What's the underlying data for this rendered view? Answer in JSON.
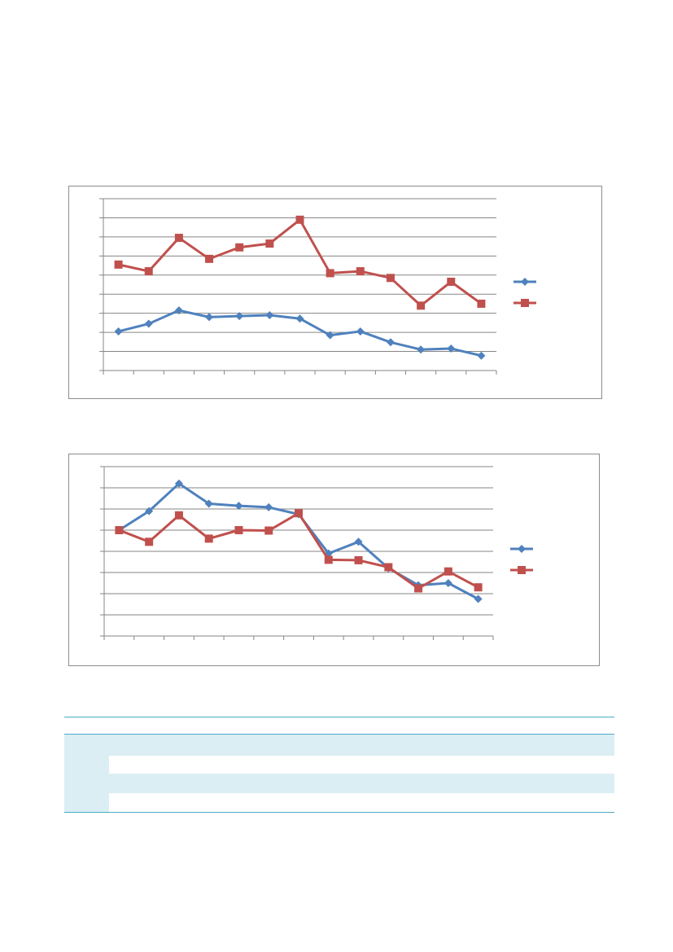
{
  "colors": {
    "series_a": "#4f81bd",
    "series_b": "#c0504d",
    "grid": "#868686",
    "table_accent": "#4bacc6",
    "table_band": "#dbeef4"
  },
  "chart_data": [
    {
      "type": "line",
      "x": [
        1,
        2,
        3,
        4,
        5,
        6,
        7,
        8,
        9,
        10,
        11,
        12,
        13
      ],
      "ylim": [
        0,
        9
      ],
      "grid": true,
      "legend": "right",
      "series": [
        {
          "color": "#4f81bd",
          "marker": "diamond",
          "values": [
            2.05,
            2.45,
            3.15,
            2.8,
            2.85,
            2.9,
            2.72,
            1.85,
            2.05,
            1.48,
            1.1,
            1.15,
            0.78
          ]
        },
        {
          "color": "#c0504d",
          "marker": "square",
          "values": [
            5.55,
            5.2,
            6.95,
            5.85,
            6.45,
            6.65,
            7.9,
            5.1,
            5.2,
            4.85,
            3.4,
            4.65,
            3.5
          ]
        }
      ]
    },
    {
      "type": "line",
      "x": [
        1,
        2,
        3,
        4,
        5,
        6,
        7,
        8,
        9,
        10,
        11,
        12,
        13
      ],
      "ylim": [
        0,
        8
      ],
      "grid": true,
      "legend": "right",
      "series": [
        {
          "color": "#4f81bd",
          "marker": "diamond",
          "values": [
            5.0,
            5.9,
            7.2,
            6.25,
            6.15,
            6.08,
            5.75,
            3.9,
            4.45,
            3.2,
            2.4,
            2.5,
            1.75
          ]
        },
        {
          "color": "#c0504d",
          "marker": "square",
          "values": [
            5.0,
            4.45,
            5.7,
            4.6,
            5.0,
            4.98,
            5.8,
            3.6,
            3.58,
            3.25,
            2.25,
            3.05,
            2.3
          ]
        }
      ]
    }
  ]
}
